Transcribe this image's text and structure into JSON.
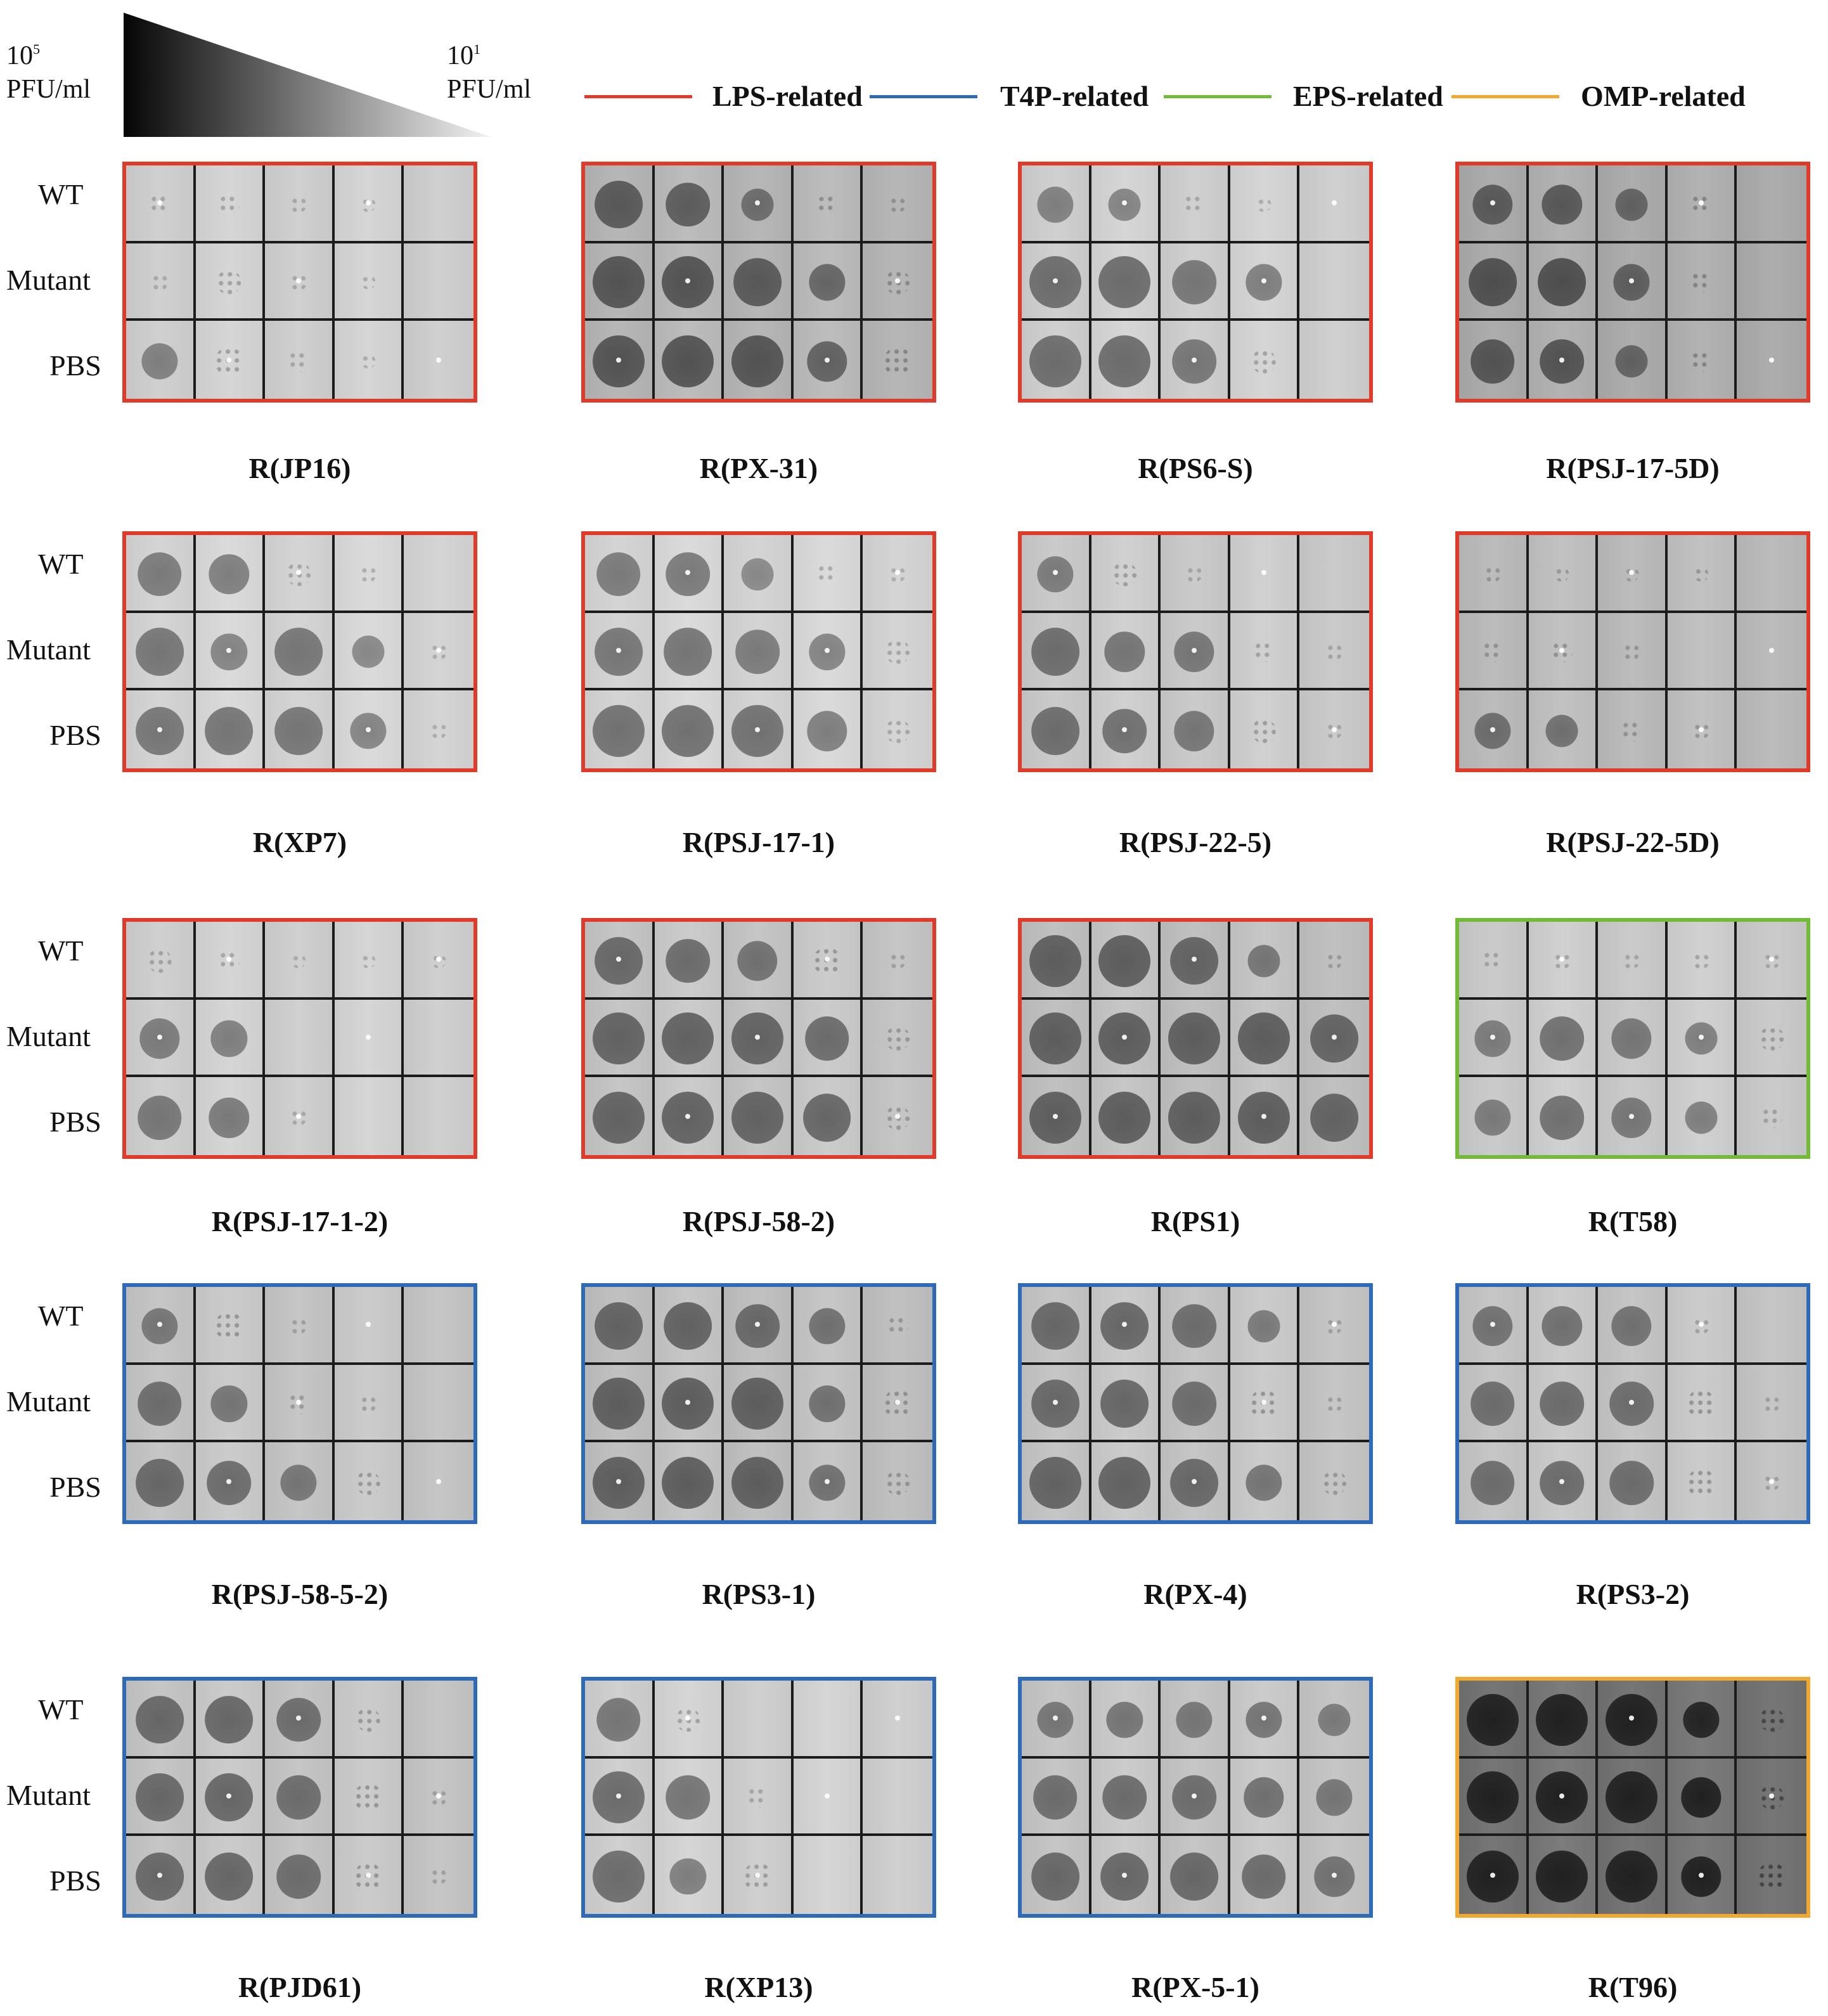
{
  "header": {
    "high_concentration": {
      "base": "10",
      "exp": "5",
      "unit": "PFU/ml"
    },
    "low_concentration": {
      "base": "10",
      "exp": "1",
      "unit": "PFU/ml"
    }
  },
  "legend": [
    {
      "label": "LPS-related",
      "color": "#e03a2a"
    },
    {
      "label": "T4P-related",
      "color": "#2f6ab8"
    },
    {
      "label": "EPS-related",
      "color": "#73b93a"
    },
    {
      "label": "OMP-related",
      "color": "#f0a830"
    }
  ],
  "row_labels": [
    "WT",
    "Mutant",
    "PBS"
  ],
  "panels": [
    {
      "name": "R(JP16)",
      "category": "LPS-related",
      "tone": 190,
      "lysis": [
        [
          0.2,
          0.2,
          0.1,
          0.05,
          0
        ],
        [
          0.1,
          0.3,
          0.1,
          0.05,
          0
        ],
        [
          0.6,
          0.4,
          0.2,
          0.05,
          0
        ]
      ]
    },
    {
      "name": "R(PX-31)",
      "category": "LPS-related",
      "tone": 165,
      "lysis": [
        [
          0.9,
          0.8,
          0.5,
          0.2,
          0.1
        ],
        [
          1,
          1,
          0.9,
          0.6,
          0.3
        ],
        [
          1,
          1,
          1,
          0.7,
          0.4
        ]
      ]
    },
    {
      "name": "R(PS6-S)",
      "category": "LPS-related",
      "tone": 190,
      "lysis": [
        [
          0.6,
          0.5,
          0.2,
          0.05,
          0
        ],
        [
          1,
          1,
          0.8,
          0.6,
          0
        ],
        [
          1,
          1,
          0.8,
          0.3,
          0
        ]
      ]
    },
    {
      "name": "R(PSJ-17-5D)",
      "category": "LPS-related",
      "tone": 155,
      "lysis": [
        [
          0.7,
          0.7,
          0.5,
          0.2,
          0
        ],
        [
          0.9,
          0.9,
          0.6,
          0.2,
          0
        ],
        [
          0.8,
          0.8,
          0.5,
          0.2,
          0
        ]
      ]
    },
    {
      "name": "R(XP7)",
      "category": "LPS-related",
      "tone": 195,
      "lysis": [
        [
          0.8,
          0.7,
          0.3,
          0.1,
          0
        ],
        [
          0.9,
          0.6,
          0.9,
          0.5,
          0.1
        ],
        [
          0.9,
          0.9,
          0.9,
          0.6,
          0.1
        ]
      ]
    },
    {
      "name": "R(PSJ-17-1)",
      "category": "LPS-related",
      "tone": 195,
      "lysis": [
        [
          0.8,
          0.8,
          0.5,
          0.2,
          0.1
        ],
        [
          0.9,
          0.9,
          0.8,
          0.6,
          0.3
        ],
        [
          1,
          1,
          1,
          0.7,
          0.3
        ]
      ]
    },
    {
      "name": "R(PSJ-22-5)",
      "category": "LPS-related",
      "tone": 185,
      "lysis": [
        [
          0.6,
          0.3,
          0.1,
          0,
          0
        ],
        [
          0.9,
          0.7,
          0.7,
          0.2,
          0.1
        ],
        [
          0.9,
          0.8,
          0.7,
          0.3,
          0.1
        ]
      ]
    },
    {
      "name": "R(PSJ-22-5D)",
      "category": "LPS-related",
      "tone": 170,
      "lysis": [
        [
          0.1,
          0.05,
          0.05,
          0.05,
          0
        ],
        [
          0.2,
          0.2,
          0.1,
          0,
          0
        ],
        [
          0.6,
          0.5,
          0.2,
          0.1,
          0
        ]
      ]
    },
    {
      "name": "R(PSJ-17-1-2)",
      "category": "LPS-related",
      "tone": 190,
      "lysis": [
        [
          0.3,
          0.2,
          0.05,
          0.05,
          0.05
        ],
        [
          0.7,
          0.6,
          0,
          0,
          0
        ],
        [
          0.8,
          0.7,
          0.1,
          0,
          0
        ]
      ]
    },
    {
      "name": "R(PSJ-58-2)",
      "category": "LPS-related",
      "tone": 180,
      "lysis": [
        [
          0.9,
          0.8,
          0.7,
          0.4,
          0.1
        ],
        [
          1,
          1,
          1,
          0.8,
          0.3
        ],
        [
          1,
          1,
          1,
          0.9,
          0.3
        ]
      ]
    },
    {
      "name": "R(PS1)",
      "category": "LPS-related",
      "tone": 175,
      "lysis": [
        [
          1,
          1,
          0.9,
          0.5,
          0.1
        ],
        [
          1,
          1,
          1,
          1,
          0.9
        ],
        [
          1,
          1,
          1,
          1,
          0.9
        ]
      ]
    },
    {
      "name": "R(T58)",
      "category": "EPS-related",
      "tone": 185,
      "lysis": [
        [
          0.2,
          0.1,
          0.1,
          0.1,
          0.1
        ],
        [
          0.6,
          0.8,
          0.7,
          0.5,
          0.3
        ],
        [
          0.6,
          0.8,
          0.7,
          0.5,
          0.2
        ]
      ]
    },
    {
      "name": "R(PSJ-58-5-2)",
      "category": "T4P-related",
      "tone": 180,
      "lysis": [
        [
          0.6,
          0.4,
          0.1,
          0,
          0
        ],
        [
          0.8,
          0.6,
          0.2,
          0.1,
          0
        ],
        [
          0.9,
          0.8,
          0.6,
          0.3,
          0
        ]
      ]
    },
    {
      "name": "R(PS3-1)",
      "category": "T4P-related",
      "tone": 175,
      "lysis": [
        [
          0.9,
          0.9,
          0.8,
          0.6,
          0.2
        ],
        [
          1,
          1,
          1,
          0.6,
          0.4
        ],
        [
          1,
          1,
          1,
          0.6,
          0.3
        ]
      ]
    },
    {
      "name": "R(PX-4)",
      "category": "T4P-related",
      "tone": 180,
      "lysis": [
        [
          0.9,
          0.9,
          0.8,
          0.5,
          0.1
        ],
        [
          0.9,
          0.9,
          0.8,
          0.4,
          0.1
        ],
        [
          1,
          1,
          0.9,
          0.6,
          0.3
        ]
      ]
    },
    {
      "name": "R(PS3-2)",
      "category": "T4P-related",
      "tone": 180,
      "lysis": [
        [
          0.7,
          0.7,
          0.7,
          0.1,
          0
        ],
        [
          0.8,
          0.8,
          0.8,
          0.4,
          0.1
        ],
        [
          0.8,
          0.8,
          0.8,
          0.4,
          0.1
        ]
      ]
    },
    {
      "name": "R(PJD61)",
      "category": "T4P-related",
      "tone": 180,
      "lysis": [
        [
          0.9,
          0.9,
          0.8,
          0.3,
          0
        ],
        [
          0.9,
          0.9,
          0.8,
          0.4,
          0.1
        ],
        [
          0.9,
          0.9,
          0.8,
          0.4,
          0.1
        ]
      ]
    },
    {
      "name": "R(XP13)",
      "category": "T4P-related",
      "tone": 190,
      "lysis": [
        [
          0.8,
          0.3,
          0,
          0,
          0
        ],
        [
          1,
          0.8,
          0.2,
          0,
          0
        ],
        [
          1,
          0.6,
          0.4,
          0,
          0
        ]
      ]
    },
    {
      "name": "R(PX-5-1)",
      "category": "T4P-related",
      "tone": 180,
      "lysis": [
        [
          0.6,
          0.6,
          0.6,
          0.6,
          0.5
        ],
        [
          0.8,
          0.8,
          0.8,
          0.7,
          0.6
        ],
        [
          0.9,
          0.9,
          0.9,
          0.8,
          0.7
        ]
      ]
    },
    {
      "name": "R(T96)",
      "category": "OMP-related",
      "tone": 100,
      "lysis": [
        [
          1,
          1,
          1,
          0.6,
          0.3
        ],
        [
          1,
          1,
          1,
          0.7,
          0.3
        ],
        [
          1,
          1,
          1,
          0.7,
          0.4
        ]
      ]
    }
  ]
}
